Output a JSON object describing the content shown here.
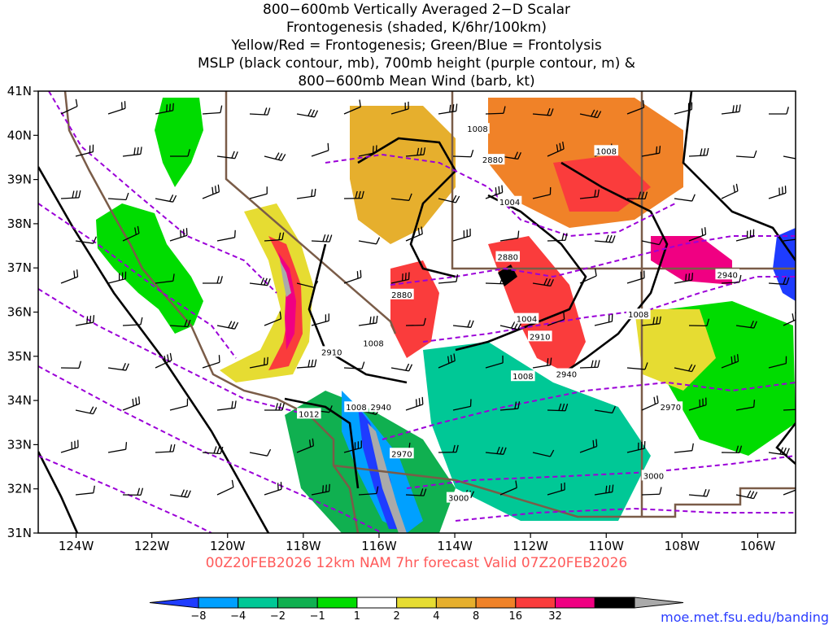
{
  "title_lines": [
    "800−600mb Vertically Averaged 2−D Scalar",
    "Frontogenesis (shaded, K/6hr/100km)",
    "Yellow/Red = Frontogenesis;  Green/Blue = Frontolysis",
    "MSLP (black contour, mb), 700mb height (purple contour, m) &",
    "800−600mb Mean Wind (barb, kt)"
  ],
  "footer": {
    "text": "00Z20FEB2026 12km NAM 7hr forecast Valid 07Z20FEB2026",
    "color": "#ff5a5a"
  },
  "url": {
    "text": "moe.met.fsu.edu/banding",
    "color": "#2a3cff"
  },
  "colors": {
    "mslp_contour": "#000000",
    "height_contour": "#9b00d8",
    "boundaries": "#7a5c48",
    "coastline": "#7a5c48"
  },
  "chart_data": {
    "type": "heatmap",
    "x_axis": {
      "range": [
        -125,
        -105
      ],
      "ticks": [
        -124,
        -122,
        -120,
        -118,
        -116,
        -114,
        -112,
        -110,
        -108,
        -106
      ],
      "tick_labels": [
        "124W",
        "122W",
        "120W",
        "118W",
        "116W",
        "114W",
        "112W",
        "110W",
        "108W",
        "106W"
      ]
    },
    "y_axis": {
      "range": [
        31,
        41
      ],
      "ticks": [
        31,
        32,
        33,
        34,
        35,
        36,
        37,
        38,
        39,
        40,
        41
      ],
      "tick_labels": [
        "31N",
        "32N",
        "33N",
        "34N",
        "35N",
        "36N",
        "37N",
        "38N",
        "39N",
        "40N",
        "41N"
      ]
    },
    "color_scale": {
      "bins": [
        {
          "color": "#1e3cff"
        },
        {
          "color": "#00a0ff"
        },
        {
          "color": "#00c896"
        },
        {
          "color": "#10b050"
        },
        {
          "color": "#00dc00"
        },
        {
          "color": "#ffffff"
        },
        {
          "color": "#e6dc32"
        },
        {
          "color": "#e6af2d"
        },
        {
          "color": "#f08228"
        },
        {
          "color": "#fa3c3c"
        },
        {
          "color": "#f00082"
        },
        {
          "color": "#000000"
        },
        {
          "color": "#aaaaaa"
        }
      ],
      "labels": [
        "−8",
        "−4",
        "−2",
        "−1",
        "1",
        "2",
        "4",
        "8",
        "16",
        "32"
      ]
    },
    "mslp_labels": [
      {
        "text": "1008",
        "lon": -113.4,
        "lat": 40.15
      },
      {
        "text": "1008",
        "lon": -110.0,
        "lat": 39.65
      },
      {
        "text": "1004",
        "lon": -112.55,
        "lat": 38.5
      },
      {
        "text": "1004",
        "lon": -112.1,
        "lat": 35.85
      },
      {
        "text": "1008",
        "lon": -116.15,
        "lat": 35.3
      },
      {
        "text": "1008",
        "lon": -109.15,
        "lat": 35.95
      },
      {
        "text": "1008",
        "lon": -112.2,
        "lat": 34.55
      },
      {
        "text": "1012",
        "lon": -117.85,
        "lat": 33.7
      },
      {
        "text": "1008",
        "lon": -116.6,
        "lat": 33.85
      }
    ],
    "height_labels": [
      {
        "text": "2880",
        "lon": -113.0,
        "lat": 39.45
      },
      {
        "text": "2880",
        "lon": -112.6,
        "lat": 37.25
      },
      {
        "text": "2880",
        "lon": -115.4,
        "lat": 36.4
      },
      {
        "text": "2910",
        "lon": -111.75,
        "lat": 35.45
      },
      {
        "text": "2910",
        "lon": -117.25,
        "lat": 35.1
      },
      {
        "text": "2940",
        "lon": -111.05,
        "lat": 34.6
      },
      {
        "text": "2940",
        "lon": -106.8,
        "lat": 36.85
      },
      {
        "text": "2940",
        "lon": -115.95,
        "lat": 33.85
      },
      {
        "text": "2970",
        "lon": -108.3,
        "lat": 33.85
      },
      {
        "text": "2970",
        "lon": -115.4,
        "lat": 32.8
      },
      {
        "text": "3000",
        "lon": -108.75,
        "lat": 32.3
      },
      {
        "text": "3000",
        "lon": -113.9,
        "lat": 31.8
      }
    ]
  }
}
